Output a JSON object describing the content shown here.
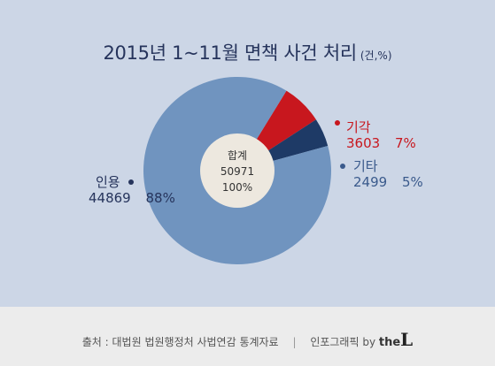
{
  "title": "2015년 1~11월 면책 사건 처리",
  "title_unit": "(건,%)",
  "colors": {
    "background": "#ccd6e6",
    "footer": "#ececec",
    "title": "#26345c",
    "center_circle": "#ede8df"
  },
  "chart_data": {
    "type": "pie",
    "total_label": "합계",
    "total_value": "50971",
    "total_percent": "100%",
    "slices": [
      {
        "name": "인용",
        "value": 44869,
        "value_label": "44869",
        "percent": "88%",
        "color": "#7094bf",
        "label_color": "#26345c"
      },
      {
        "name": "기각",
        "value": 3603,
        "value_label": "3603",
        "percent": "7%",
        "color": "#c8171e",
        "label_color": "#c8171e"
      },
      {
        "name": "기타",
        "value": 2499,
        "value_label": "2499",
        "percent": "5%",
        "color": "#1e3a66",
        "label_color": "#3a5a8c"
      }
    ]
  },
  "footer": {
    "source": "출처 : 대법원 법원행정처 사법연감 통계자료",
    "separator": "|",
    "credit": "인포그래픽 by",
    "logo_small": "the",
    "logo_big": "L"
  }
}
